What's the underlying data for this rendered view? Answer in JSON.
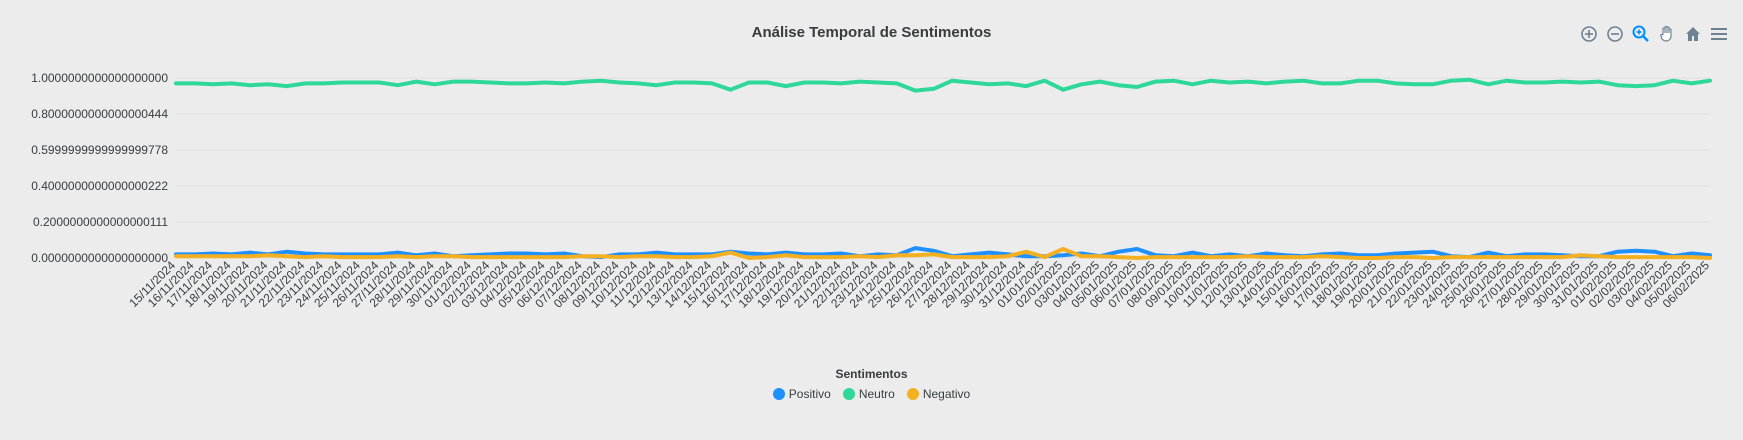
{
  "chart_data": {
    "type": "line",
    "title": "Análise Temporal de Sentimentos",
    "legend_title": "Sentimentos",
    "ylim": [
      0,
      1
    ],
    "y_ticks": [
      "0.0000000000000000000",
      "0.2000000000000000111",
      "0.4000000000000000222",
      "0.5999999999999999778",
      "0.8000000000000000444",
      "1.0000000000000000000"
    ],
    "grid": true,
    "legend_position": "bottom",
    "categories": [
      "15/11/2024",
      "16/11/2024",
      "17/11/2024",
      "18/11/2024",
      "19/11/2024",
      "20/11/2024",
      "21/11/2024",
      "22/11/2024",
      "23/11/2024",
      "24/11/2024",
      "25/11/2024",
      "26/11/2024",
      "27/11/2024",
      "28/11/2024",
      "29/11/2024",
      "30/11/2024",
      "01/12/2024",
      "02/12/2024",
      "03/12/2024",
      "04/12/2024",
      "05/12/2024",
      "06/12/2024",
      "07/12/2024",
      "08/12/2024",
      "09/12/2024",
      "10/12/2024",
      "11/12/2024",
      "12/12/2024",
      "13/12/2024",
      "14/12/2024",
      "15/12/2024",
      "16/12/2024",
      "17/12/2024",
      "18/12/2024",
      "19/12/2024",
      "20/12/2024",
      "21/12/2024",
      "22/12/2024",
      "23/12/2024",
      "24/12/2024",
      "25/12/2024",
      "26/12/2024",
      "27/12/2024",
      "28/12/2024",
      "29/12/2024",
      "30/12/2024",
      "31/12/2024",
      "01/01/2025",
      "02/01/2025",
      "03/01/2025",
      "04/01/2025",
      "05/01/2025",
      "06/01/2025",
      "07/01/2025",
      "08/01/2025",
      "09/01/2025",
      "10/01/2025",
      "11/01/2025",
      "12/01/2025",
      "13/01/2025",
      "14/01/2025",
      "15/01/2025",
      "16/01/2025",
      "17/01/2025",
      "18/01/2025",
      "19/01/2025",
      "20/01/2025",
      "21/01/2025",
      "22/01/2025",
      "23/01/2025",
      "24/01/2025",
      "25/01/2025",
      "26/01/2025",
      "27/01/2025",
      "28/01/2025",
      "29/01/2025",
      "30/01/2025",
      "31/01/2025",
      "01/02/2025",
      "02/02/2025",
      "03/02/2025",
      "04/02/2025",
      "05/02/2025",
      "06/02/2025"
    ],
    "series": [
      {
        "name": "Positivo",
        "color": "#1e90ff",
        "values": [
          0.02,
          0.02,
          0.025,
          0.02,
          0.03,
          0.02,
          0.035,
          0.025,
          0.02,
          0.02,
          0.02,
          0.02,
          0.03,
          0.015,
          0.025,
          0.01,
          0.015,
          0.02,
          0.025,
          0.025,
          0.02,
          0.025,
          0.01,
          0.005,
          0.02,
          0.02,
          0.03,
          0.02,
          0.02,
          0.02,
          0.035,
          0.025,
          0.02,
          0.03,
          0.02,
          0.02,
          0.025,
          0.01,
          0.02,
          0.015,
          0.055,
          0.04,
          0.01,
          0.02,
          0.03,
          0.02,
          0.01,
          0.01,
          0.015,
          0.025,
          0.01,
          0.035,
          0.05,
          0.015,
          0.01,
          0.03,
          0.01,
          0.02,
          0.01,
          0.025,
          0.015,
          0.01,
          0.02,
          0.025,
          0.015,
          0.015,
          0.025,
          0.03,
          0.035,
          0.01,
          0.005,
          0.03,
          0.01,
          0.02,
          0.02,
          0.015,
          0.01,
          0.01,
          0.035,
          0.04,
          0.035,
          0.01,
          0.025,
          0.015
        ]
      },
      {
        "name": "Neutro",
        "color": "#2ed899",
        "values": [
          0.97,
          0.97,
          0.965,
          0.97,
          0.96,
          0.965,
          0.955,
          0.97,
          0.97,
          0.975,
          0.975,
          0.975,
          0.96,
          0.98,
          0.965,
          0.98,
          0.98,
          0.975,
          0.97,
          0.97,
          0.975,
          0.97,
          0.98,
          0.985,
          0.975,
          0.97,
          0.96,
          0.975,
          0.975,
          0.97,
          0.935,
          0.975,
          0.975,
          0.955,
          0.975,
          0.975,
          0.97,
          0.98,
          0.975,
          0.97,
          0.93,
          0.94,
          0.985,
          0.975,
          0.965,
          0.97,
          0.955,
          0.985,
          0.935,
          0.965,
          0.98,
          0.96,
          0.95,
          0.98,
          0.985,
          0.965,
          0.985,
          0.975,
          0.98,
          0.97,
          0.98,
          0.985,
          0.97,
          0.97,
          0.985,
          0.985,
          0.97,
          0.965,
          0.965,
          0.985,
          0.99,
          0.965,
          0.985,
          0.975,
          0.975,
          0.98,
          0.975,
          0.98,
          0.96,
          0.955,
          0.96,
          0.985,
          0.97,
          0.985
        ]
      },
      {
        "name": "Negativo",
        "color": "#f5b021",
        "values": [
          0.01,
          0.01,
          0.01,
          0.01,
          0.01,
          0.015,
          0.01,
          0.005,
          0.01,
          0.005,
          0.005,
          0.005,
          0.01,
          0.005,
          0.01,
          0.01,
          0.005,
          0.005,
          0.005,
          0.005,
          0.005,
          0.005,
          0.01,
          0.01,
          0.005,
          0.01,
          0.01,
          0.005,
          0.005,
          0.01,
          0.03,
          0.0,
          0.005,
          0.015,
          0.005,
          0.005,
          0.005,
          0.01,
          0.005,
          0.015,
          0.015,
          0.02,
          0.005,
          0.005,
          0.005,
          0.01,
          0.035,
          0.005,
          0.05,
          0.01,
          0.01,
          0.005,
          0.0,
          0.005,
          0.005,
          0.005,
          0.005,
          0.005,
          0.01,
          0.005,
          0.005,
          0.005,
          0.01,
          0.005,
          0.0,
          0.0,
          0.005,
          0.005,
          0.0,
          0.005,
          0.005,
          0.005,
          0.005,
          0.005,
          0.005,
          0.005,
          0.015,
          0.01,
          0.005,
          0.005,
          0.005,
          0.005,
          0.005,
          0.0
        ]
      }
    ]
  },
  "toolbar": {
    "icons": [
      "zoom-in-icon",
      "zoom-out-icon",
      "selection-zoom-icon",
      "pan-hand-icon",
      "home-reset-icon",
      "menu-icon"
    ]
  }
}
